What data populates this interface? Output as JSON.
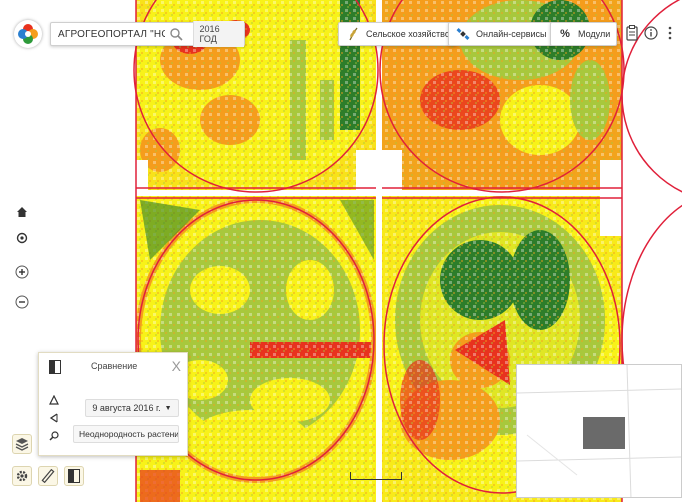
{
  "app": {
    "title": "АГРОГЕОПОРТАЛ \"НОВЕ\"",
    "year": "2016 ГОД"
  },
  "toolbar": {
    "agriculture_label": "Сельское хозяйство",
    "online_services_label": "Онлайн-сервисы",
    "modules_label": "Модули"
  },
  "icons": {
    "logo": "petal-logo-icon",
    "search": "search-icon",
    "agriculture": "wheat-icon",
    "online_services": "satellite-icon",
    "modules": "percent-icon",
    "clipboard": "clipboard-icon",
    "info": "info-icon",
    "more": "more-vertical-icon",
    "home": "home-icon",
    "locate": "locate-icon",
    "zoom_in": "plus-icon",
    "zoom_out": "minus-icon",
    "layers": "layers-icon",
    "settings": "gear-icon",
    "ruler": "ruler-icon",
    "compare": "compare-icon",
    "triangle": "triangle-icon",
    "swipe": "swipe-icon",
    "pan": "pan-icon"
  },
  "compare_panel": {
    "title": "Сравнение",
    "close": "X",
    "date": "9 августа 2016 г.",
    "layer": "Неоднородность растени"
  },
  "colors": {
    "field_red": "#e8321e",
    "field_orange": "#f59d1c",
    "field_yellow": "#f8f219",
    "field_lightgreen": "#a8c83c",
    "field_darkgreen": "#2d7d2a",
    "boundary_red": "#e0203a"
  }
}
